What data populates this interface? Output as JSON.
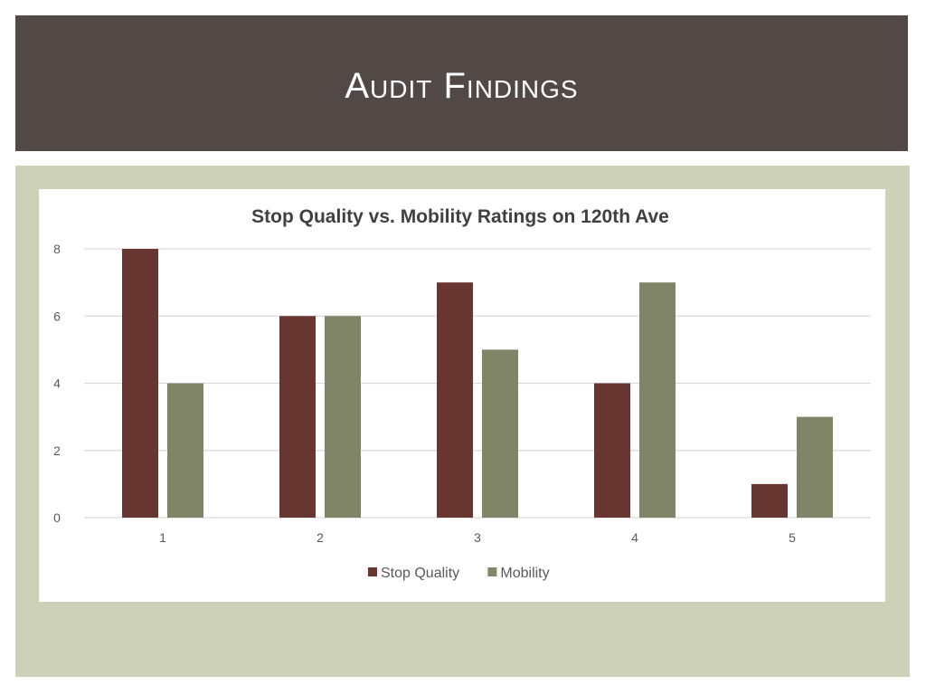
{
  "slide": {
    "title": "Audit Findings"
  },
  "chart_data": {
    "type": "bar",
    "title": "Stop Quality vs. Mobility Ratings on 120th Ave",
    "xlabel": "",
    "ylabel": "",
    "categories": [
      "1",
      "2",
      "3",
      "4",
      "5"
    ],
    "series": [
      {
        "name": "Stop Quality",
        "values": [
          8,
          6,
          7,
          4,
          1
        ],
        "color": "#673631"
      },
      {
        "name": "Mobility",
        "values": [
          4,
          6,
          5,
          7,
          3
        ],
        "color": "#7f8566"
      }
    ],
    "ylim": [
      0,
      8
    ],
    "yticks": [
      0,
      2,
      4,
      6,
      8
    ],
    "grid": true,
    "legend": "bottom"
  },
  "colors": {
    "title_bar": "#524845",
    "panel": "#ccd1b8",
    "gridline": "#d9d9d9",
    "axis_text": "#595959"
  }
}
